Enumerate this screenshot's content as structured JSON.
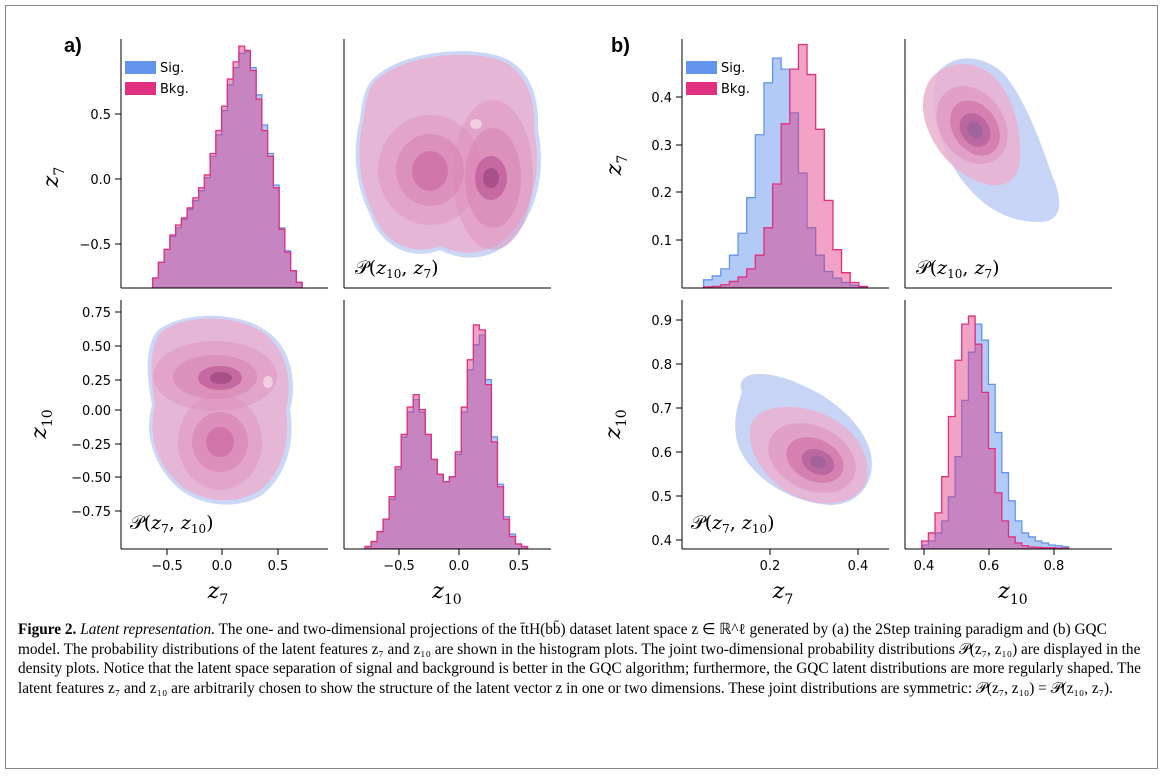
{
  "colors": {
    "signal": "#6495ed",
    "background": "#e0307f",
    "overlap": "#a173cc"
  },
  "panel_letters": [
    "a)",
    "b)"
  ],
  "legend": {
    "signal": "Sig.",
    "background": "Bkg."
  },
  "caption": {
    "label": "Figure 2.",
    "title": "Latent representation.",
    "body": "The one- and two-dimensional projections of the t̄tH(bb̄) dataset latent space z ∈ ℝ^ℓ generated by (a) the 2Step training paradigm and (b) GQC model. The probability distributions of the latent features z₇ and z₁₀ are shown in the histogram plots. The joint two-dimensional probability distributions 𝒫(z₇, z₁₀) are displayed in the density plots. Notice that the latent space separation of signal and background is better in the GQC algorithm; furthermore, the GQC latent distributions are more regularly shaped. The latent features z₇ and z₁₀ are arbitrarily chosen to show the structure of the latent vector z in one or two dimensions. These joint distributions are symmetric: 𝒫(z₇, z₁₀) = 𝒫(z₁₀, z₇)."
  },
  "chart_data": [
    {
      "panel": "a) top-left",
      "type": "histogram",
      "xlabel": "",
      "ylabel": "z7",
      "xlim": [
        -0.85,
        0.95
      ],
      "ylim": [
        -0.82,
        0.92
      ],
      "yticks": [
        -0.5,
        0.0,
        0.5
      ],
      "legend": "top-left",
      "series": [
        {
          "name": "Sig.",
          "x": [
            -0.55,
            -0.5,
            -0.45,
            -0.4,
            -0.35,
            -0.3,
            -0.25,
            -0.2,
            -0.15,
            -0.1,
            -0.05,
            0.0,
            0.05,
            0.1,
            0.15,
            0.2,
            0.25,
            0.3,
            0.35,
            0.4,
            0.45,
            0.5,
            0.55,
            0.6,
            0.65,
            0.7
          ],
          "values": [
            -0.75,
            -0.64,
            -0.55,
            -0.46,
            -0.4,
            -0.34,
            -0.27,
            -0.21,
            -0.14,
            -0.05,
            0.1,
            0.25,
            0.42,
            0.6,
            0.72,
            0.82,
            0.83,
            0.72,
            0.53,
            0.32,
            0.12,
            -0.1,
            -0.4,
            -0.56,
            -0.7,
            -0.78
          ]
        },
        {
          "name": "Bkg.",
          "x": [
            -0.55,
            -0.5,
            -0.45,
            -0.4,
            -0.35,
            -0.3,
            -0.25,
            -0.2,
            -0.15,
            -0.1,
            -0.05,
            0.0,
            0.05,
            0.1,
            0.15,
            0.2,
            0.25,
            0.3,
            0.35,
            0.4,
            0.45,
            0.5,
            0.55,
            0.6,
            0.65,
            0.7
          ],
          "values": [
            -0.75,
            -0.64,
            -0.55,
            -0.45,
            -0.38,
            -0.33,
            -0.26,
            -0.19,
            -0.12,
            -0.03,
            0.12,
            0.28,
            0.45,
            0.64,
            0.76,
            0.87,
            0.84,
            0.7,
            0.5,
            0.28,
            0.1,
            -0.12,
            -0.41,
            -0.57,
            -0.7,
            -0.78
          ]
        }
      ]
    },
    {
      "panel": "a) top-right",
      "type": "density",
      "label": "𝒫(z10, z7)",
      "modes": [
        {
          "x": -0.28,
          "y": 0.05
        },
        {
          "x": 0.22,
          "y": 0.02
        }
      ]
    },
    {
      "panel": "a) bottom-left",
      "type": "density",
      "xlabel": "z7",
      "ylabel": "z10",
      "xlim": [
        -0.85,
        0.95
      ],
      "ylim": [
        -0.9,
        0.82
      ],
      "xticks": [
        -0.5,
        0.0,
        0.5
      ],
      "yticks": [
        -0.75,
        -0.5,
        -0.25,
        0.0,
        0.25,
        0.5,
        0.75
      ],
      "label": "𝒫(z7, z10)",
      "modes": [
        {
          "x": 0.05,
          "y": 0.22
        },
        {
          "x": 0.02,
          "y": -0.28
        }
      ]
    },
    {
      "panel": "a) bottom-right",
      "type": "histogram",
      "xlabel": "z10",
      "xlim": [
        -0.9,
        0.82
      ],
      "xticks": [
        -0.5,
        0.0,
        0.5
      ],
      "series": [
        {
          "name": "Sig.",
          "x": [
            -0.7,
            -0.65,
            -0.6,
            -0.55,
            -0.5,
            -0.45,
            -0.4,
            -0.35,
            -0.3,
            -0.25,
            -0.2,
            -0.15,
            -0.1,
            -0.05,
            0.0,
            0.05,
            0.1,
            0.15,
            0.2,
            0.25,
            0.3,
            0.35,
            0.4,
            0.45,
            0.5,
            0.55,
            0.6
          ],
          "values": [
            0.01,
            0.03,
            0.07,
            0.12,
            0.2,
            0.32,
            0.45,
            0.55,
            0.6,
            0.55,
            0.46,
            0.36,
            0.3,
            0.27,
            0.29,
            0.38,
            0.55,
            0.72,
            0.82,
            0.86,
            0.68,
            0.45,
            0.26,
            0.13,
            0.06,
            0.02,
            0.01
          ]
        },
        {
          "name": "Bkg.",
          "x": [
            -0.7,
            -0.65,
            -0.6,
            -0.55,
            -0.5,
            -0.45,
            -0.4,
            -0.35,
            -0.3,
            -0.25,
            -0.2,
            -0.15,
            -0.1,
            -0.05,
            0.0,
            0.05,
            0.1,
            0.15,
            0.2,
            0.25,
            0.3,
            0.35,
            0.4,
            0.45,
            0.5,
            0.55,
            0.6
          ],
          "values": [
            0.01,
            0.03,
            0.07,
            0.12,
            0.21,
            0.33,
            0.46,
            0.57,
            0.62,
            0.56,
            0.46,
            0.36,
            0.3,
            0.27,
            0.29,
            0.39,
            0.57,
            0.76,
            0.9,
            0.88,
            0.66,
            0.43,
            0.25,
            0.12,
            0.05,
            0.02,
            0.01
          ]
        }
      ]
    },
    {
      "panel": "b) top-left",
      "type": "histogram",
      "ylabel": "z7",
      "xlim": [
        0.02,
        0.5
      ],
      "ylim": [
        0.01,
        0.465
      ],
      "yticks": [
        0.1,
        0.2,
        0.3,
        0.4
      ],
      "legend": "top-left",
      "series": [
        {
          "name": "Sig.",
          "x": [
            0.08,
            0.1,
            0.12,
            0.14,
            0.16,
            0.18,
            0.2,
            0.22,
            0.24,
            0.26,
            0.28,
            0.3,
            0.32,
            0.34,
            0.36,
            0.38,
            0.4,
            0.42,
            0.44
          ],
          "values": [
            0.025,
            0.032,
            0.045,
            0.07,
            0.11,
            0.175,
            0.29,
            0.385,
            0.43,
            0.41,
            0.33,
            0.22,
            0.12,
            0.07,
            0.04,
            0.028,
            0.02,
            0.015,
            0.012
          ]
        },
        {
          "name": "Bkg.",
          "x": [
            0.08,
            0.1,
            0.12,
            0.14,
            0.16,
            0.18,
            0.2,
            0.22,
            0.24,
            0.26,
            0.28,
            0.3,
            0.32,
            0.34,
            0.36,
            0.38,
            0.4,
            0.42,
            0.44
          ],
          "values": [
            0.012,
            0.013,
            0.016,
            0.022,
            0.03,
            0.045,
            0.07,
            0.12,
            0.2,
            0.31,
            0.41,
            0.455,
            0.4,
            0.3,
            0.17,
            0.08,
            0.038,
            0.02,
            0.013
          ]
        }
      ]
    },
    {
      "panel": "b) top-right",
      "type": "density",
      "label": "𝒫(z10, z7)"
    },
    {
      "panel": "b) bottom-left",
      "type": "density",
      "xlabel": "z7",
      "ylabel": "z10",
      "xlim": [
        0.02,
        0.5
      ],
      "ylim": [
        0.37,
        0.99
      ],
      "xticks": [
        0.2,
        0.4
      ],
      "yticks": [
        0.4,
        0.5,
        0.6,
        0.7,
        0.8,
        0.9
      ],
      "label": "𝒫(z7, z10)",
      "modes": [
        {
          "name": "Sig.",
          "x": 0.29,
          "y": 0.57
        },
        {
          "name": "Bkg.",
          "x": 0.31,
          "y": 0.55
        }
      ]
    },
    {
      "panel": "b) bottom-right",
      "type": "histogram",
      "xlabel": "z10",
      "xlim": [
        0.37,
        0.99
      ],
      "xticks": [
        0.4,
        0.6,
        0.8
      ],
      "series": [
        {
          "name": "Sig.",
          "x": [
            0.43,
            0.45,
            0.47,
            0.49,
            0.51,
            0.53,
            0.55,
            0.57,
            0.59,
            0.61,
            0.63,
            0.65,
            0.67,
            0.69,
            0.71,
            0.73,
            0.75,
            0.77,
            0.79,
            0.81,
            0.83,
            0.85
          ],
          "values": [
            0.38,
            0.39,
            0.41,
            0.44,
            0.5,
            0.6,
            0.74,
            0.86,
            0.93,
            0.89,
            0.78,
            0.66,
            0.56,
            0.49,
            0.44,
            0.41,
            0.4,
            0.39,
            0.385,
            0.38,
            0.378,
            0.376
          ]
        },
        {
          "name": "Bkg.",
          "x": [
            0.43,
            0.45,
            0.47,
            0.49,
            0.51,
            0.53,
            0.55,
            0.57,
            0.59,
            0.61,
            0.63,
            0.65,
            0.67,
            0.69,
            0.71,
            0.73,
            0.75,
            0.77,
            0.79,
            0.81,
            0.83,
            0.85
          ],
          "values": [
            0.39,
            0.41,
            0.46,
            0.55,
            0.7,
            0.84,
            0.93,
            0.95,
            0.88,
            0.76,
            0.62,
            0.51,
            0.44,
            0.4,
            0.385,
            0.378,
            0.375,
            0.374,
            0.373,
            0.373,
            0.372,
            0.372
          ]
        }
      ]
    }
  ]
}
